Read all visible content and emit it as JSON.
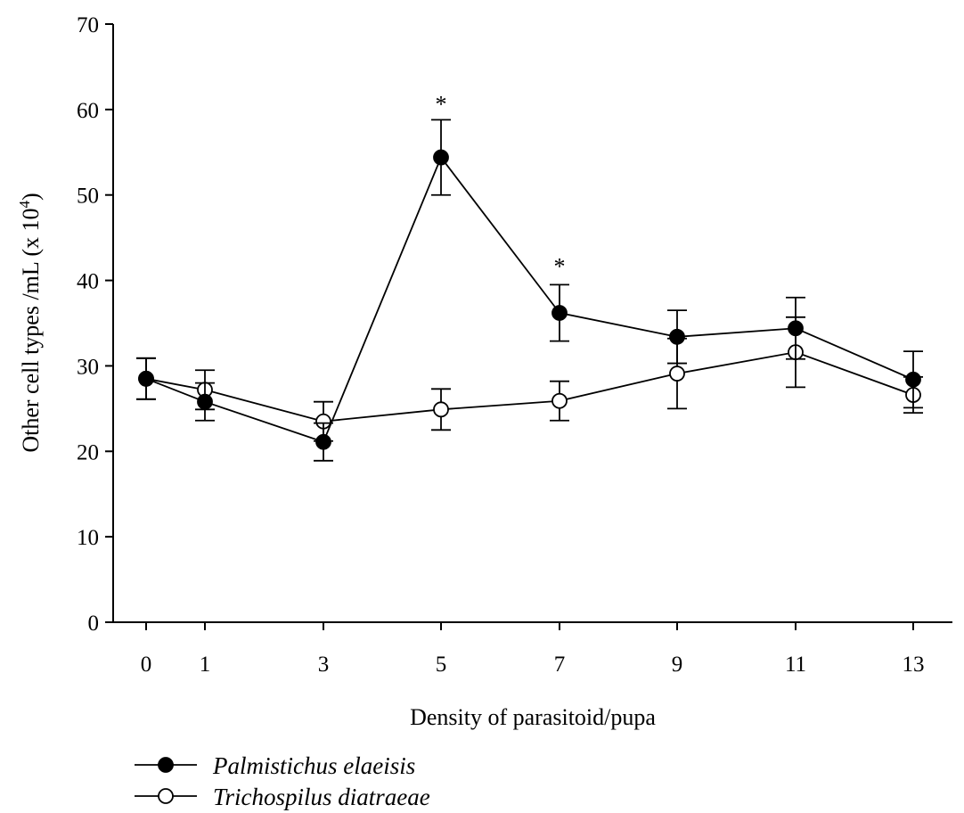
{
  "chart_data": {
    "type": "line",
    "title": "",
    "xlabel": "Density of parasitoid/pupa",
    "ylabel_main": "Other cell types /mL (x 10",
    "ylabel_sup": "4",
    "ylabel_close": ")",
    "x": [
      0,
      1,
      3,
      5,
      7,
      9,
      11,
      13
    ],
    "x_tick_labels": [
      "0",
      "1",
      "3",
      "5",
      "7",
      "9",
      "11",
      "13"
    ],
    "ylim": [
      0,
      70
    ],
    "y_ticks": [
      0,
      10,
      20,
      30,
      40,
      50,
      60,
      70
    ],
    "y_tick_labels": [
      "0",
      "10",
      "20",
      "30",
      "40",
      "50",
      "60",
      "70"
    ],
    "grid": false,
    "legend_position": "bottom-left",
    "series": [
      {
        "name": "Palmistichus elaeisis",
        "marker": "filled-circle",
        "values": [
          28.5,
          25.8,
          21.1,
          54.4,
          36.2,
          33.4,
          34.4,
          28.4
        ],
        "errors": [
          2.4,
          2.2,
          2.2,
          4.4,
          3.3,
          3.1,
          3.6,
          3.3
        ]
      },
      {
        "name": "Trichospilus diatraeae",
        "marker": "open-circle",
        "values": [
          28.5,
          27.2,
          23.5,
          24.9,
          25.9,
          29.1,
          31.6,
          26.6
        ],
        "errors": [
          2.4,
          2.3,
          2.3,
          2.4,
          2.3,
          4.1,
          4.1,
          2.1
        ]
      }
    ],
    "annotations": [
      {
        "text": "*",
        "x": 5,
        "y": 61.2
      },
      {
        "text": "*",
        "x": 7,
        "y": 42.2
      }
    ],
    "colors": {
      "line": "#000000",
      "open_fill": "#ffffff",
      "filled_fill": "#000000"
    }
  }
}
